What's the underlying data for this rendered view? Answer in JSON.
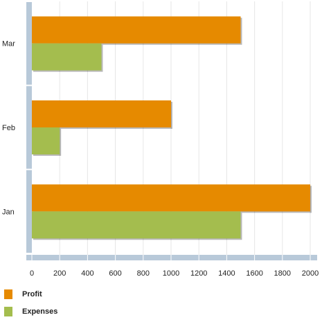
{
  "chart_data": {
    "type": "bar",
    "orientation": "horizontal",
    "title": "",
    "xlabel": "",
    "ylabel": "",
    "categories": [
      "Jan",
      "Feb",
      "Mar"
    ],
    "series": [
      {
        "name": "Profit",
        "values": [
          2000,
          1000,
          1500
        ],
        "color": "#e68a00"
      },
      {
        "name": "Expenses",
        "values": [
          1500,
          200,
          500
        ],
        "color": "#a4bd4e"
      }
    ],
    "xlim": [
      0,
      2000
    ],
    "x_ticks": [
      0,
      200,
      400,
      600,
      800,
      1000,
      1200,
      1400,
      1600,
      1800,
      2000
    ],
    "grid": true,
    "legend_position": "bottom-left",
    "axis_color": "#b8c9d9"
  },
  "legend": {
    "items": [
      {
        "label": "Profit",
        "color": "#e68a00"
      },
      {
        "label": "Expenses",
        "color": "#a4bd4e"
      }
    ]
  }
}
